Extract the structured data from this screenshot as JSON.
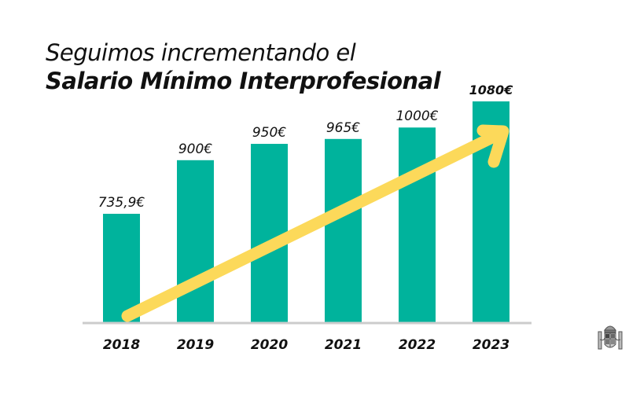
{
  "title": {
    "line1": "Seguimos incrementando el",
    "line2": "Salario Mínimo Interprofesional"
  },
  "colors": {
    "bar": "#00b39c",
    "arrow": "#fcd95a",
    "axis": "#cccccc",
    "text": "#111111"
  },
  "logo": {
    "name": "coat-of-arms-of-spain"
  },
  "chart_data": {
    "type": "bar",
    "title": "Seguimos incrementando el Salario Mínimo Interprofesional",
    "xlabel": "",
    "ylabel": "",
    "categories": [
      "2018",
      "2019",
      "2020",
      "2021",
      "2022",
      "2023"
    ],
    "values": [
      735.9,
      900,
      950,
      965,
      1000,
      1080
    ],
    "labels": [
      "735,9€",
      "900€",
      "950€",
      "965€",
      "1000€",
      "1080€"
    ],
    "highlight_last_label_bold": true,
    "grid": false,
    "legend": "none",
    "annotation": "upward trend arrow"
  }
}
